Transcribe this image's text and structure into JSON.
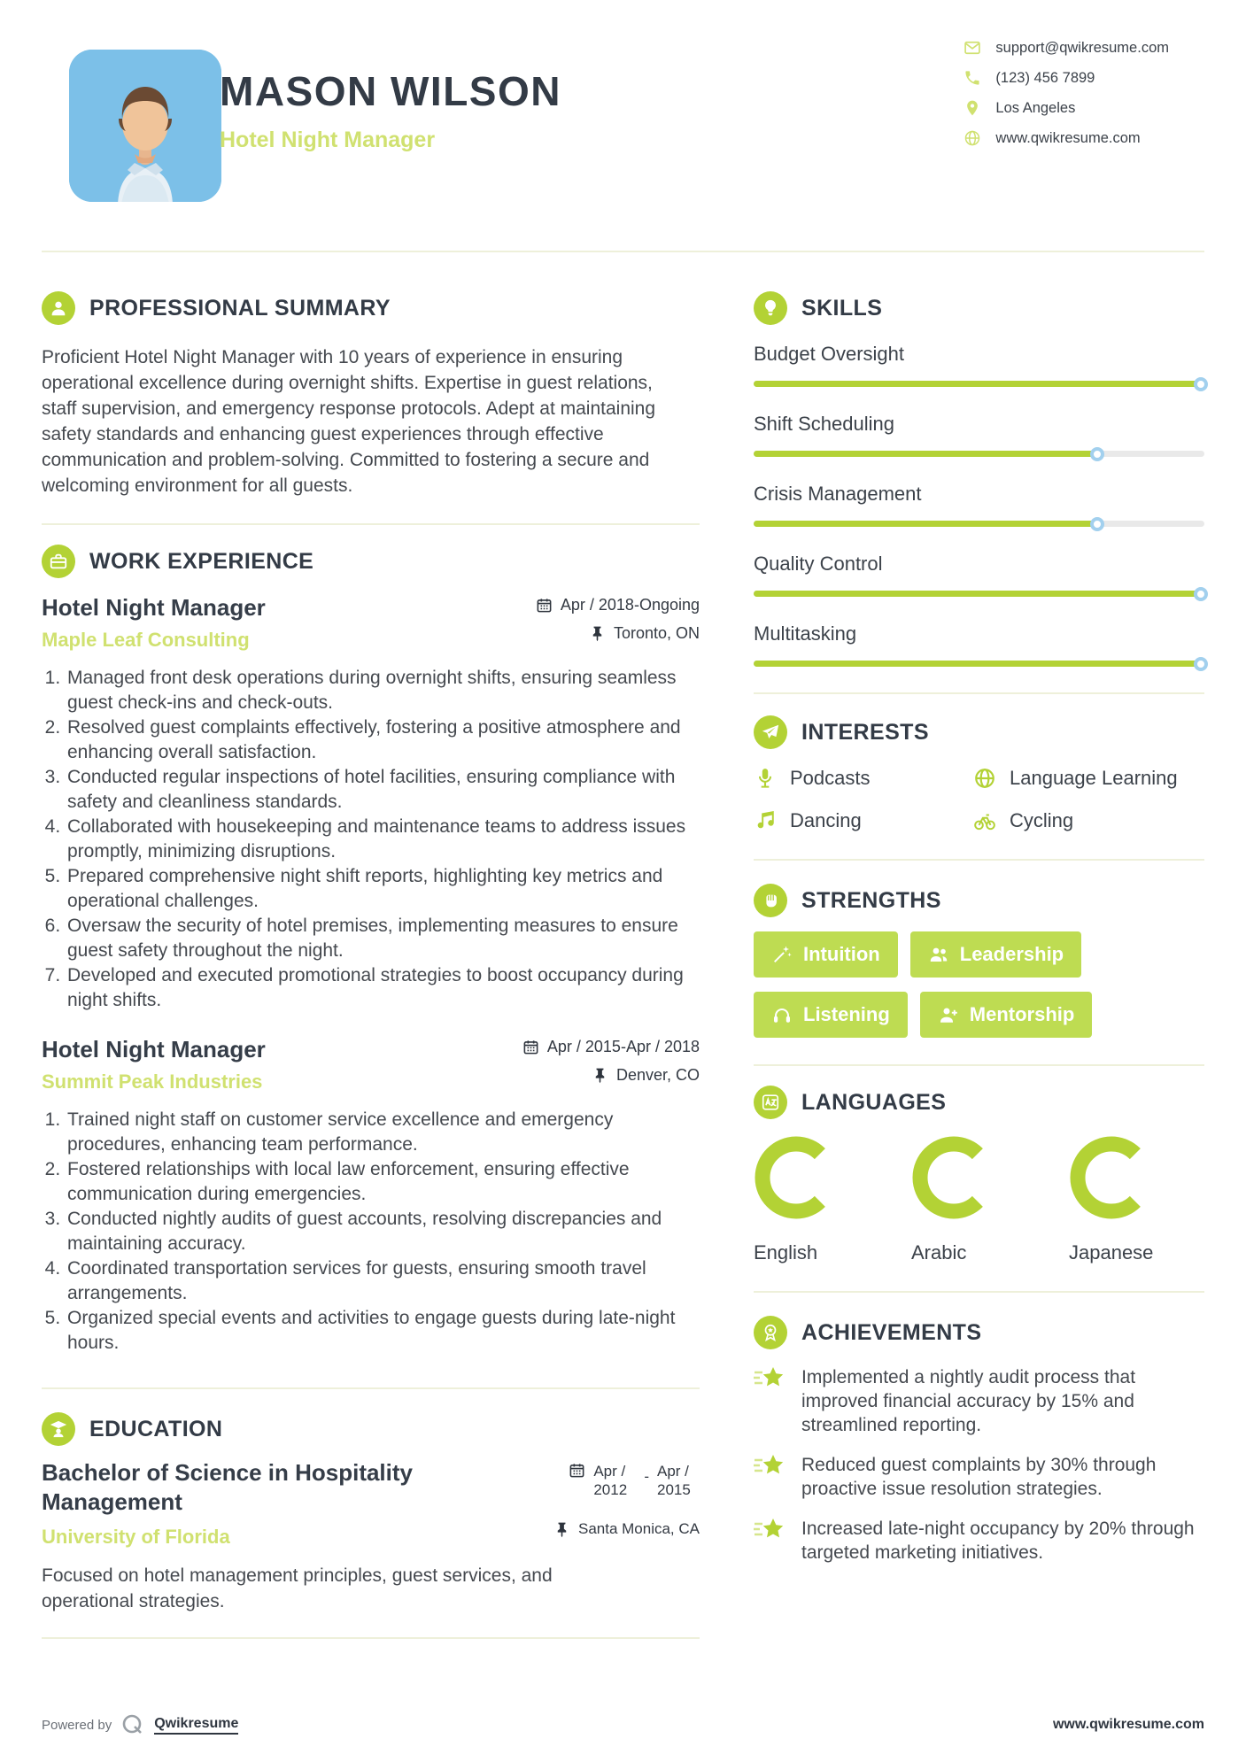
{
  "colors": {
    "accent": "#b3d235",
    "accent_light": "#d0e170",
    "badge_green": "#bedc52",
    "navy": "#333b46",
    "photo_blue": "#7cc0e8",
    "slider_track": "#e9e9e9",
    "knob_border": "#a2d0ee"
  },
  "header": {
    "name": "MASON WILSON",
    "title": "Hotel Night Manager",
    "contact": {
      "email": "support@qwikresume.com",
      "phone": "(123) 456 7899",
      "location": "Los Angeles",
      "website": "www.qwikresume.com"
    }
  },
  "summary": {
    "heading": "PROFESSIONAL SUMMARY",
    "text": "Proficient Hotel Night Manager with 10 years of experience in ensuring operational excellence during overnight shifts. Expertise in guest relations, staff supervision, and emergency response protocols. Adept at maintaining safety standards and enhancing guest experiences through effective communication and problem-solving. Committed to fostering a secure and welcoming environment for all guests."
  },
  "experience": {
    "heading": "WORK EXPERIENCE",
    "jobs": [
      {
        "title": "Hotel Night Manager",
        "company": "Maple Leaf Consulting",
        "date": "Apr / 2018-Ongoing",
        "location": "Toronto, ON",
        "bullets": [
          "Managed front desk operations during overnight shifts, ensuring seamless guest check-ins and check-outs.",
          "Resolved guest complaints effectively, fostering a positive atmosphere and enhancing overall satisfaction.",
          "Conducted regular inspections of hotel facilities, ensuring compliance with safety and cleanliness standards.",
          "Collaborated with housekeeping and maintenance teams to address issues promptly, minimizing disruptions.",
          "Prepared comprehensive night shift reports, highlighting key metrics and operational challenges.",
          "Oversaw the security of hotel premises, implementing measures to ensure guest safety throughout the night.",
          "Developed and executed promotional strategies to boost occupancy during night shifts."
        ]
      },
      {
        "title": "Hotel Night Manager",
        "company": "Summit Peak Industries",
        "date": "Apr / 2015-Apr / 2018",
        "location": "Denver, CO",
        "bullets": [
          "Trained night staff on customer service excellence and emergency procedures, enhancing team performance.",
          "Fostered relationships with local law enforcement, ensuring effective communication during emergencies.",
          "Conducted nightly audits of guest accounts, resolving discrepancies and maintaining accuracy.",
          "Coordinated transportation services for guests, ensuring smooth travel arrangements.",
          "Organized special events and activities to engage guests during late-night hours."
        ]
      }
    ]
  },
  "education": {
    "heading": "EDUCATION",
    "degree": "Bachelor of Science in Hospitality Management",
    "school": "University of Florida",
    "date_start": "Apr / 2012",
    "date_separator": "-",
    "date_end": "Apr / 2015",
    "location": "Santa Monica, CA",
    "description": "Focused on hotel management principles, guest services, and operational strategies."
  },
  "skills": {
    "heading": "SKILLS",
    "items": [
      {
        "label": "Budget Oversight",
        "percent": 100
      },
      {
        "label": "Shift Scheduling",
        "percent": 77
      },
      {
        "label": "Crisis Management",
        "percent": 77
      },
      {
        "label": "Quality Control",
        "percent": 100
      },
      {
        "label": "Multitasking",
        "percent": 100
      }
    ]
  },
  "interests": {
    "heading": "INTERESTS",
    "items": [
      {
        "icon": "microphone-icon",
        "label": "Podcasts"
      },
      {
        "icon": "globe-icon",
        "label": "Language Learning"
      },
      {
        "icon": "music-note-icon",
        "label": "Dancing"
      },
      {
        "icon": "bicycle-icon",
        "label": "Cycling"
      }
    ]
  },
  "strengths": {
    "heading": "STRENGTHS",
    "items": [
      {
        "icon": "wand-icon",
        "label": "Intuition"
      },
      {
        "icon": "people-icon",
        "label": "Leadership"
      },
      {
        "icon": "headphones-icon",
        "label": "Listening"
      },
      {
        "icon": "person-plus-icon",
        "label": "Mentorship"
      }
    ]
  },
  "languages": {
    "heading": "LANGUAGES",
    "items": [
      {
        "label": "English",
        "percent": 75
      },
      {
        "label": "Arabic",
        "percent": 75
      },
      {
        "label": "Japanese",
        "percent": 75
      }
    ]
  },
  "achievements": {
    "heading": "ACHIEVEMENTS",
    "items": [
      "Implemented a nightly audit process that improved financial accuracy by 15% and streamlined reporting.",
      "Reduced guest complaints by 30% through proactive issue resolution strategies.",
      "Increased late-night occupancy by 20% through targeted marketing initiatives."
    ]
  },
  "footer": {
    "powered_by": "Powered by",
    "brand": "Qwikresume",
    "website": "www.qwikresume.com"
  }
}
